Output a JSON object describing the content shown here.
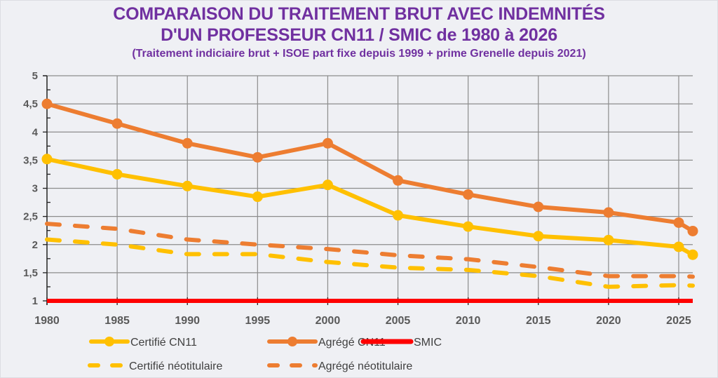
{
  "header": {
    "title_line1": "COMPARAISON DU TRAITEMENT BRUT AVEC INDEMNITÉS",
    "title_line2": "D'UN PROFESSEUR CN11 / SMIC de 1980 à 2026",
    "subtitle": "(Traitement indiciaire brut + ISOE part fixe depuis 1999 + prime Grenelle depuis 2021)"
  },
  "chart_data": {
    "type": "line",
    "title": "COMPARAISON DU TRAITEMENT BRUT AVEC INDEMNITÉS D'UN PROFESSEUR CN11 / SMIC de 1980 à 2026",
    "subtitle": "(Traitement indiciaire brut + ISOE part fixe depuis 1999 + prime Grenelle depuis 2021)",
    "xlabel": "",
    "ylabel": "",
    "x": [
      1980,
      1985,
      1990,
      1995,
      2000,
      2005,
      2010,
      2015,
      2020,
      2025,
      2026
    ],
    "xlim": [
      1980,
      2026
    ],
    "ylim": [
      1,
      5
    ],
    "x_ticks": [
      1980,
      1985,
      1990,
      1995,
      2000,
      2005,
      2010,
      2015,
      2020,
      2025
    ],
    "x_tick_labels": [
      "1980",
      "1985",
      "1990",
      "1995",
      "2000",
      "2005",
      "2010",
      "2015",
      "2020",
      "2025"
    ],
    "y_ticks": [
      1,
      1.5,
      2,
      2.5,
      3,
      3.5,
      4,
      4.5,
      5
    ],
    "y_tick_labels": [
      "1",
      "1,5",
      "2",
      "2,5",
      "3",
      "3,5",
      "4",
      "4,5",
      "5"
    ],
    "grid": true,
    "legend_position": "bottom",
    "series": [
      {
        "name": "Certifié CN11",
        "style": "solid-markers",
        "color": "#ffc000",
        "values": [
          3.52,
          3.25,
          3.04,
          2.85,
          3.06,
          2.52,
          2.32,
          2.15,
          2.08,
          1.96,
          1.82
        ]
      },
      {
        "name": "Agrégé CN11",
        "style": "solid-markers",
        "color": "#ed7d31",
        "values": [
          4.5,
          4.15,
          3.8,
          3.55,
          3.8,
          3.14,
          2.89,
          2.67,
          2.57,
          2.39,
          2.24
        ]
      },
      {
        "name": "SMIC",
        "style": "solid",
        "color": "#ff0000",
        "values": [
          1,
          1,
          1,
          1,
          1,
          1,
          1,
          1,
          1,
          1,
          1
        ]
      },
      {
        "name": "Certifié néotitulaire",
        "style": "dashed",
        "color": "#ffc000",
        "values": [
          2.09,
          2.0,
          1.83,
          1.83,
          1.69,
          1.59,
          1.55,
          1.44,
          1.25,
          1.28,
          1.27
        ]
      },
      {
        "name": "Agrégé néotitulaire",
        "style": "dashed",
        "color": "#ed7d31",
        "values": [
          2.37,
          2.28,
          2.09,
          2.0,
          1.92,
          1.81,
          1.74,
          1.6,
          1.44,
          1.44,
          1.43
        ]
      }
    ]
  }
}
